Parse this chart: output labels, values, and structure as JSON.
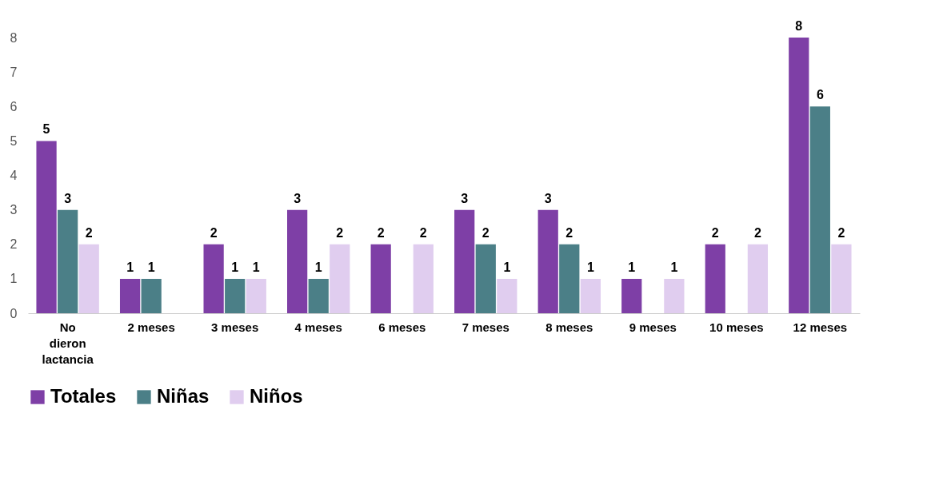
{
  "chart_data": {
    "type": "bar",
    "categories": [
      "No dieron lactancia",
      "2 meses",
      "3 meses",
      "4 meses",
      "6 meses",
      "7 meses",
      "8 meses",
      "9 meses",
      "10 meses",
      "12 meses"
    ],
    "series": [
      {
        "name": "Totales",
        "color": "#7e3fa6",
        "values": [
          5,
          1,
          2,
          3,
          2,
          3,
          3,
          1,
          2,
          8
        ],
        "value_labels": [
          "5",
          "1",
          "2",
          "3",
          "2",
          "3",
          "3",
          "1",
          "2",
          "8"
        ]
      },
      {
        "name": "Niñas",
        "color": "#4b7f87",
        "values": [
          3,
          1,
          1,
          1,
          0,
          2,
          2,
          0,
          0,
          6
        ],
        "value_labels": [
          "3",
          "1",
          "1",
          "1",
          null,
          "2",
          "2",
          null,
          null,
          "6"
        ]
      },
      {
        "name": "Niños",
        "color": "#e0cdef",
        "values": [
          2,
          0,
          1,
          2,
          2,
          1,
          1,
          1,
          2,
          2
        ],
        "value_labels": [
          "2",
          null,
          "1",
          "2",
          "2",
          "1",
          "1",
          "1",
          "2",
          "2"
        ]
      }
    ],
    "ylim": [
      0,
      8
    ],
    "yticks": [
      0,
      1,
      2,
      3,
      4,
      5,
      6,
      7,
      8
    ],
    "grid": false,
    "legend": "bottom"
  }
}
